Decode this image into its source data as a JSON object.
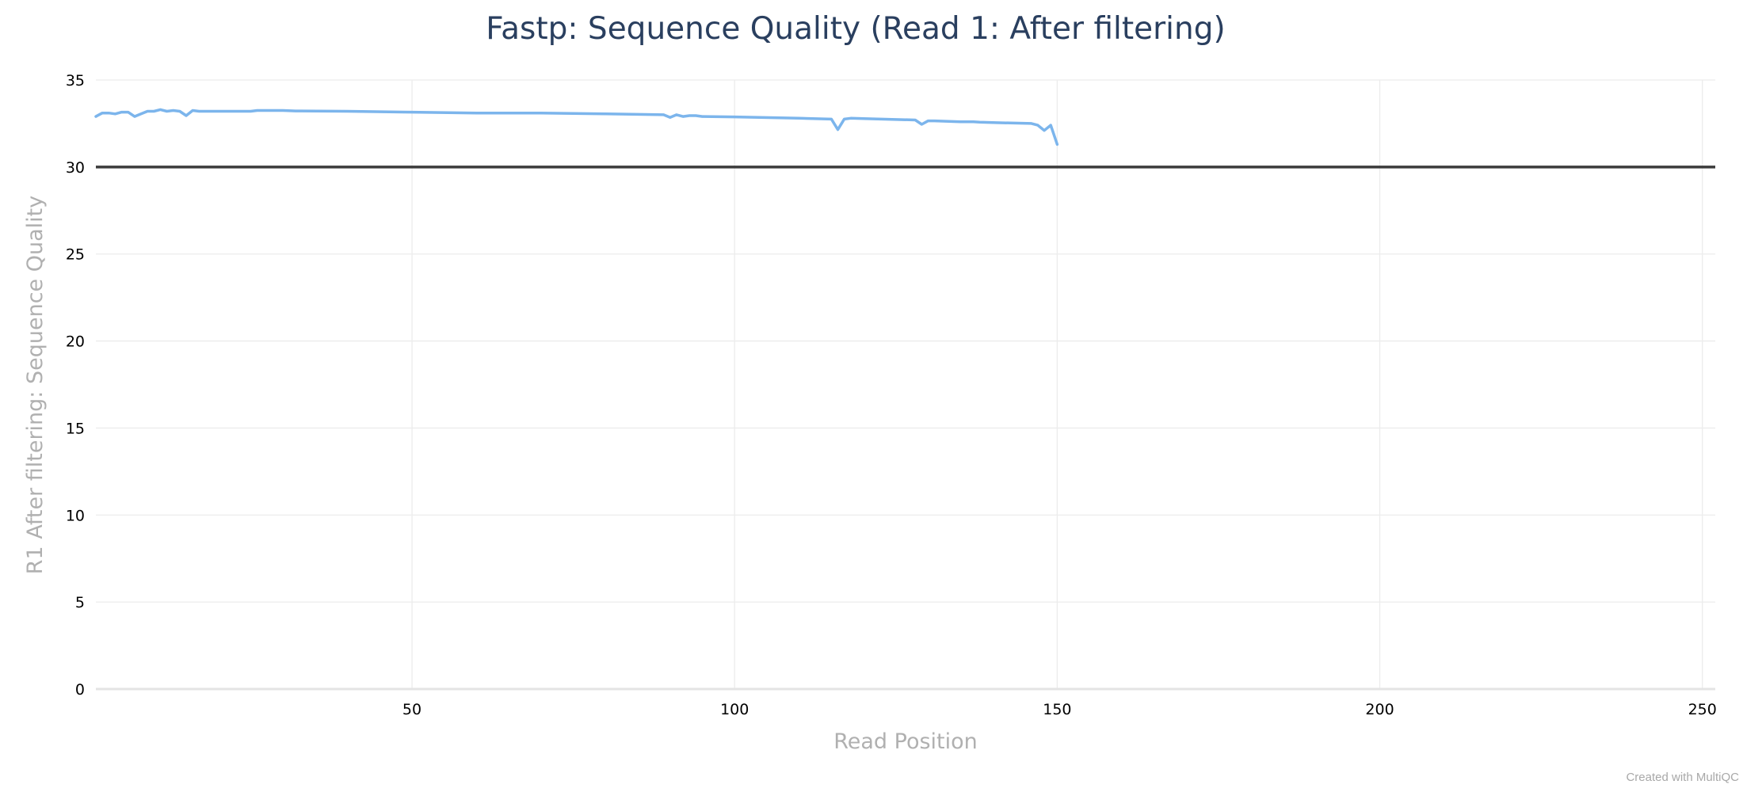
{
  "chart_data": {
    "type": "line",
    "title": "Fastp: Sequence Quality (Read 1: After filtering)",
    "xlabel": "Read Position",
    "ylabel": "R1 After filtering: Sequence Quality",
    "xlim": [
      1,
      252
    ],
    "ylim": [
      0,
      35
    ],
    "xticks": [
      50,
      100,
      150,
      200,
      250
    ],
    "yticks": [
      0,
      5,
      10,
      15,
      20,
      25,
      30,
      35
    ],
    "grid": true,
    "reference_line": {
      "y": 30,
      "color": "#3b3b3b"
    },
    "series": [
      {
        "color": "#7cb5ec",
        "x": [
          1,
          2,
          3,
          4,
          5,
          6,
          7,
          8,
          9,
          10,
          11,
          12,
          13,
          14,
          15,
          16,
          17,
          18,
          20,
          25,
          26,
          30,
          32,
          40,
          50,
          60,
          70,
          80,
          89,
          90,
          91,
          92,
          93,
          94,
          95,
          100,
          110,
          115,
          116,
          117,
          118,
          120,
          128,
          129,
          130,
          131,
          135,
          137,
          138,
          140,
          146,
          147,
          148,
          149,
          150
        ],
        "y": [
          32.9,
          33.1,
          33.1,
          33.05,
          33.15,
          33.15,
          32.9,
          33.05,
          33.2,
          33.2,
          33.3,
          33.2,
          33.25,
          33.2,
          32.95,
          33.25,
          33.2,
          33.2,
          33.2,
          33.2,
          33.25,
          33.25,
          33.22,
          33.2,
          33.15,
          33.1,
          33.1,
          33.05,
          33.0,
          32.85,
          33.0,
          32.9,
          32.95,
          32.95,
          32.9,
          32.88,
          32.8,
          32.75,
          32.15,
          32.75,
          32.8,
          32.78,
          32.7,
          32.45,
          32.65,
          32.65,
          32.6,
          32.6,
          32.58,
          32.55,
          32.5,
          32.4,
          32.1,
          32.4,
          31.3
        ]
      }
    ]
  },
  "footer": {
    "credit": "Created with MultiQC"
  }
}
